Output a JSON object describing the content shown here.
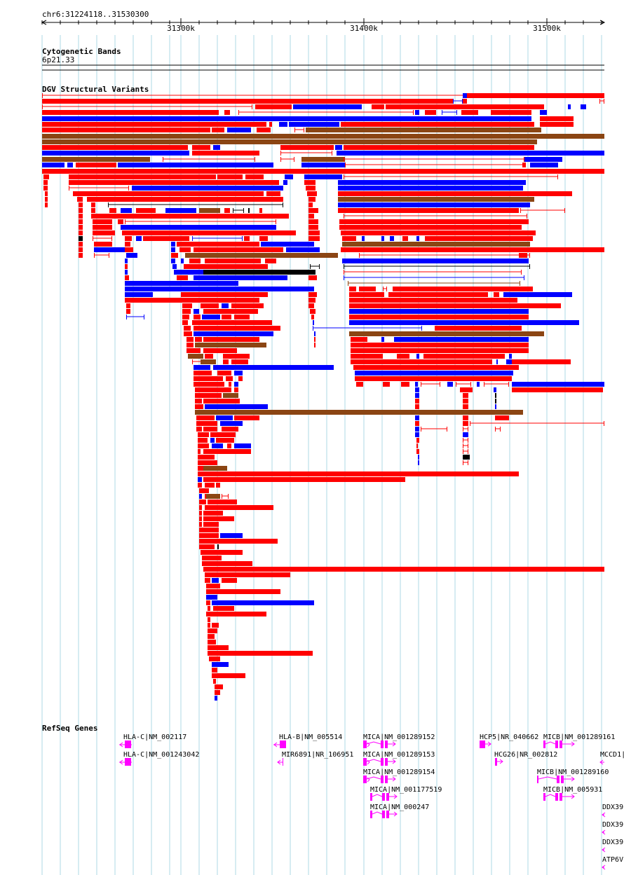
{
  "ruler": {
    "position": "chr6:31224118..31530300",
    "ticks": [
      "31300k",
      "31400k",
      "31500k"
    ]
  },
  "tracks": {
    "cytoband": {
      "title": "Cytogenetic Bands",
      "band": "6p21.33"
    },
    "dgv": {
      "title": "DGV Structural Variants"
    },
    "refseq": {
      "title": "RefSeq Genes"
    }
  },
  "colors": {
    "gain": "#ff0000",
    "loss": "#0000ff",
    "gain_loss": "#8b4513",
    "inversion": "#000000",
    "gene": "#ff00ff",
    "grid": "#add8e6"
  },
  "genes": [
    "HLA-C|NM_002117",
    "HLA-C|NM_001243042",
    "HLA-B|NM_005514",
    "MIR6891|NR_106951",
    "MICA|NM_001289152",
    "MICA|NM_001289153",
    "MICA|NM_001289154",
    "MICA|NM_001177519",
    "MICA|NM_000247",
    "HCP5|NR_040662",
    "HCG26|NR_002812",
    "MICB|NM_001289161",
    "MICB|NM_001289160",
    "MICB|NM_005931",
    "MCCD1|",
    "DDX39",
    "DDX39",
    "DDX39",
    "ATP6V"
  ]
}
